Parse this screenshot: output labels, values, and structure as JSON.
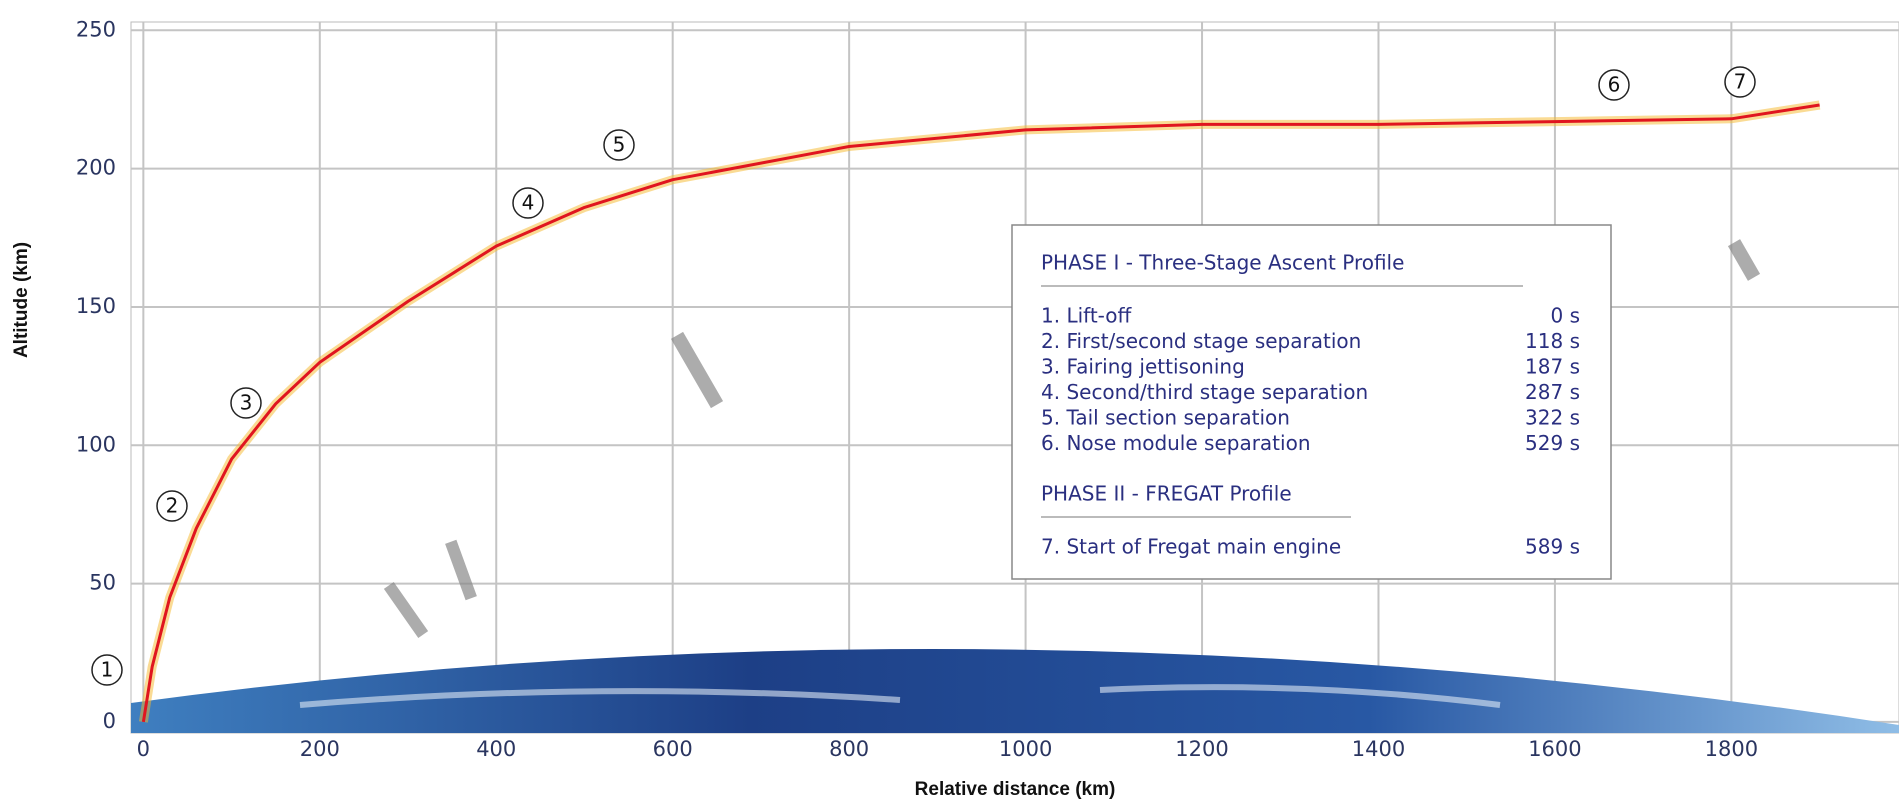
{
  "chart_data": {
    "type": "line",
    "x_label": "Relative distance (km)",
    "y_label": "Altitude (km)",
    "xlim": [
      -14,
      1990
    ],
    "ylim": [
      -4,
      253
    ],
    "xticks": [
      0,
      200,
      400,
      600,
      800,
      1000,
      1200,
      1400,
      1600,
      1800
    ],
    "yticks": [
      0,
      50,
      100,
      150,
      200,
      250
    ],
    "grid": true,
    "color": "#e0151f",
    "x": [
      0,
      10,
      30,
      60,
      100,
      150,
      200,
      300,
      400,
      500,
      600,
      800,
      1000,
      1200,
      1400,
      1600,
      1800,
      1900
    ],
    "values": [
      0,
      20,
      45,
      70,
      95,
      115,
      130,
      152,
      172,
      186,
      196,
      208,
      214,
      216,
      216,
      217,
      218,
      223
    ],
    "annotations": [
      "1",
      "2",
      "3",
      "4",
      "5",
      "6",
      "7"
    ],
    "legend": {
      "phases": [
        {
          "title": "PHASE I - Three-Stage Ascent Profile",
          "events": [
            {
              "label": "1. Lift-off",
              "time": "0 s"
            },
            {
              "label": "2. First/second stage separation",
              "time": "118 s"
            },
            {
              "label": "3. Fairing jettisoning",
              "time": "187 s"
            },
            {
              "label": "4. Second/third stage separation",
              "time": "287 s"
            },
            {
              "label": "5. Tail section separation",
              "time": "322 s"
            },
            {
              "label": "6. Nose module separation",
              "time": "529 s"
            }
          ]
        },
        {
          "title": "PHASE II - FREGAT Profile",
          "events": [
            {
              "label": "7. Start of Fregat main engine",
              "time": "589 s"
            }
          ]
        }
      ]
    }
  }
}
